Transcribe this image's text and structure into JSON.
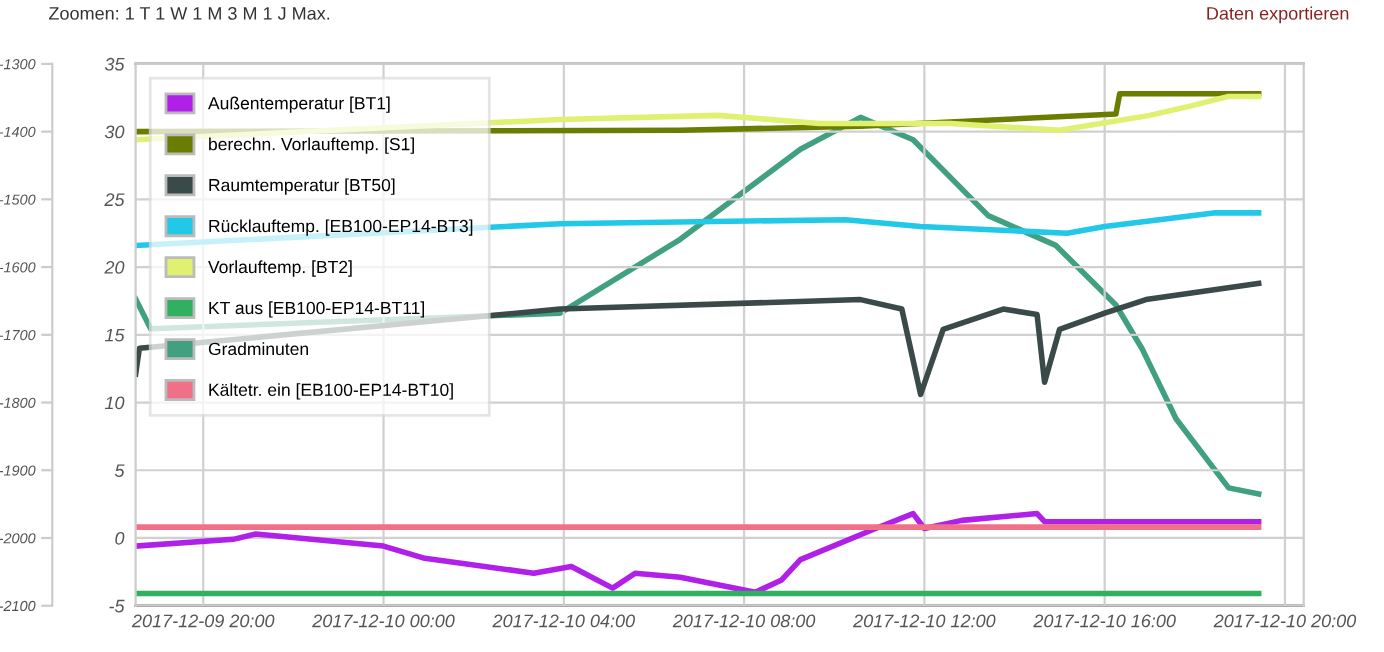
{
  "chart_data": {
    "type": "line",
    "annotations": [
      "Zoomen: 1 T 1 W 1 M 3 M 1 J Max.",
      "Daten exportieren"
    ],
    "xlim": [
      "2017-12-09T18:30",
      "2017-12-10T20:25"
    ],
    "xticks": [
      {
        "value": "2017-12-09T20:00",
        "label": "2017-12-09 20:00"
      },
      {
        "value": "2017-12-10T00:00",
        "label": "2017-12-10 00:00"
      },
      {
        "value": "2017-12-10T04:00",
        "label": "2017-12-10 04:00"
      },
      {
        "value": "2017-12-10T08:00",
        "label": "2017-12-10 08:00"
      },
      {
        "value": "2017-12-10T12:00",
        "label": "2017-12-10 12:00"
      },
      {
        "value": "2017-12-10T16:00",
        "label": "2017-12-10 16:00"
      },
      {
        "value": "2017-12-10T20:00",
        "label": "2017-12-10 20:00"
      }
    ],
    "ylim": [
      -5,
      35
    ],
    "yticks": [
      -5,
      0,
      5,
      10,
      15,
      20,
      25,
      30,
      35
    ],
    "y2lim": [
      -2100,
      -1300
    ],
    "y2ticks": [
      -2100,
      -2000,
      -1900,
      -1800,
      -1700,
      -1600,
      -1500,
      -1400,
      -1300
    ],
    "grid": true,
    "legend": "top left",
    "marker": "none",
    "line_style": "solid",
    "series": [
      {
        "name": "Außentemperatur [BT1]",
        "color": "#b020e8",
        "x": [
          "2017-12-09T18:30",
          "2017-12-09T20:40",
          "2017-12-09T21:10",
          "2017-12-10T00:00",
          "2017-12-10T00:55",
          "2017-12-10T03:20",
          "2017-12-10T04:10",
          "2017-12-10T05:05",
          "2017-12-10T05:35",
          "2017-12-10T06:35",
          "2017-12-10T08:15",
          "2017-12-10T08:50",
          "2017-12-10T09:15",
          "2017-12-10T10:55",
          "2017-12-10T11:45",
          "2017-12-10T12:00",
          "2017-12-10T12:50",
          "2017-12-10T14:30",
          "2017-12-10T14:40",
          "2017-12-10T19:25"
        ],
        "values": [
          -0.6,
          -0.1,
          0.3,
          -0.6,
          -1.5,
          -2.6,
          -2.1,
          -3.7,
          -2.6,
          -2.9,
          -4.0,
          -3.1,
          -1.6,
          0.7,
          1.8,
          0.7,
          1.3,
          1.8,
          1.2,
          1.2
        ]
      },
      {
        "name": "berechn. Vorlauftemp. [S1]",
        "color": "#6b7d00",
        "x": [
          "2017-12-09T18:30",
          "2017-12-10T06:35",
          "2017-12-10T10:35",
          "2017-12-10T16:15",
          "2017-12-10T16:20",
          "2017-12-10T19:25"
        ],
        "values": [
          30,
          30.1,
          30.4,
          31.3,
          32.8,
          32.8
        ]
      },
      {
        "name": "Raumtemperatur [BT50]",
        "color": "#3a4a48",
        "x": [
          "2017-12-09T18:30",
          "2017-12-09T18:35",
          "2017-12-10T03:55",
          "2017-12-10T10:35",
          "2017-12-10T11:30",
          "2017-12-10T11:55",
          "2017-12-10T12:25",
          "2017-12-10T13:45",
          "2017-12-10T14:30",
          "2017-12-10T14:40",
          "2017-12-10T15:00",
          "2017-12-10T16:00",
          "2017-12-10T16:55",
          "2017-12-10T19:25"
        ],
        "values": [
          12.1,
          14,
          16.9,
          17.6,
          16.9,
          10.6,
          15.4,
          16.9,
          16.5,
          11.5,
          15.4,
          16.6,
          17.6,
          18.8
        ]
      },
      {
        "name": "Rücklauftemp. [EB100-EP14-BT3]",
        "color": "#22c8e8",
        "x": [
          "2017-12-09T18:30",
          "2017-12-10T03:55",
          "2017-12-10T10:15",
          "2017-12-10T11:55",
          "2017-12-10T15:10",
          "2017-12-10T16:00",
          "2017-12-10T18:25",
          "2017-12-10T19:25"
        ],
        "values": [
          21.6,
          23.2,
          23.5,
          23.0,
          22.5,
          23.0,
          24.0,
          24.0
        ]
      },
      {
        "name": "Vorlauftemp. [BT2]",
        "color": "#e0f070",
        "x": [
          "2017-12-09T18:30",
          "2017-12-10T03:55",
          "2017-12-10T07:25",
          "2017-12-10T09:40",
          "2017-12-10T12:35",
          "2017-12-10T15:00",
          "2017-12-10T17:00",
          "2017-12-10T17:55",
          "2017-12-10T18:45",
          "2017-12-10T19:25"
        ],
        "values": [
          29.4,
          30.9,
          31.2,
          30.6,
          30.6,
          30.1,
          31.2,
          31.9,
          32.6,
          32.6
        ]
      },
      {
        "name": "KT aus [EB100-EP14-BT11]",
        "color": "#30b060",
        "x": [
          "2017-12-09T18:30",
          "2017-12-10T19:25"
        ],
        "values": [
          -4.1,
          -4.1
        ]
      },
      {
        "name": "Gradminuten",
        "color": "#40a080",
        "axis": "y2",
        "x": [
          "2017-12-09T18:30",
          "2017-12-09T18:50",
          "2017-12-10T03:55",
          "2017-12-10T06:35",
          "2017-12-10T09:15",
          "2017-12-10T10:35",
          "2017-12-10T11:45",
          "2017-12-10T13:25",
          "2017-12-10T14:55",
          "2017-12-10T16:15",
          "2017-12-10T16:50",
          "2017-12-10T17:35",
          "2017-12-10T18:45",
          "2017-12-10T19:25"
        ],
        "values": [
          -1647,
          -1691,
          -1668,
          -1559,
          -1426,
          -1379,
          -1412,
          -1524,
          -1568,
          -1656,
          -1721,
          -1824,
          -1926,
          -1935
        ]
      },
      {
        "name": "Kältetr. ein [EB100-EP14-BT10]",
        "color": "#f07088",
        "x": [
          "2017-12-09T18:30",
          "2017-12-10T19:25"
        ],
        "values": [
          0.8,
          0.8
        ]
      }
    ]
  }
}
